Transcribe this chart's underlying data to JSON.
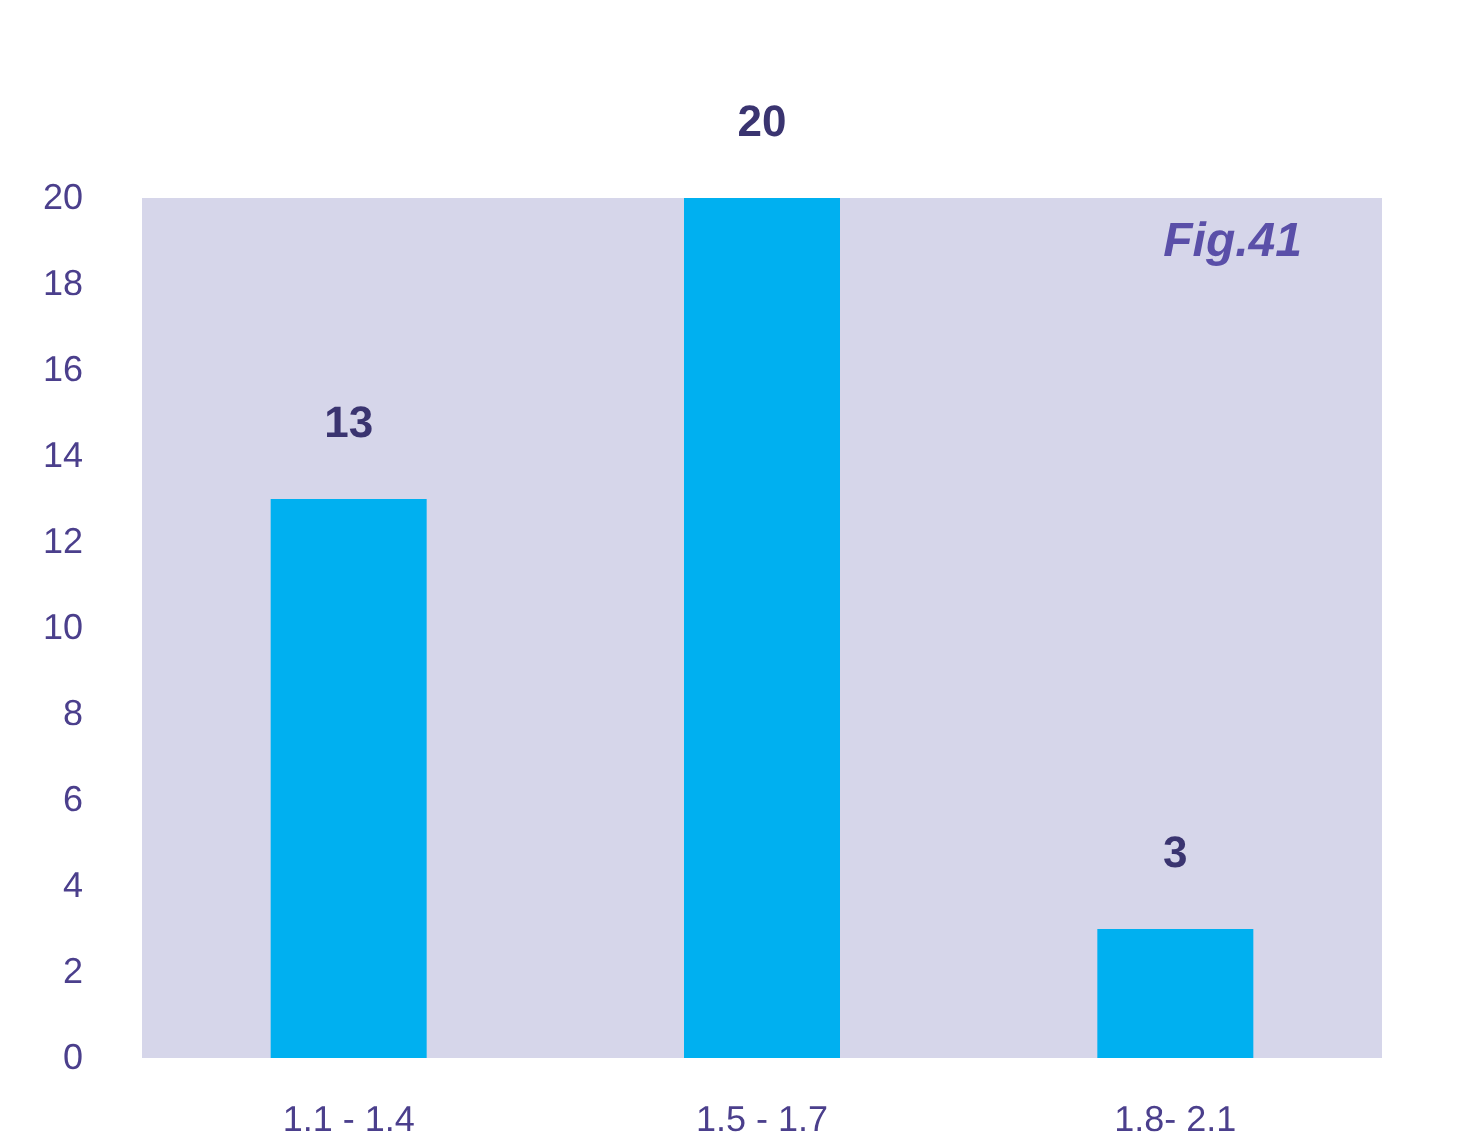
{
  "chart_data": {
    "type": "bar",
    "categories": [
      "1.1 - 1.4",
      "1.5 - 1.7",
      "1.8- 2.1"
    ],
    "values": [
      13,
      20,
      3
    ],
    "color": "#00b0f0",
    "ylim": [
      0,
      20
    ],
    "yticks": [
      0,
      2,
      4,
      6,
      8,
      10,
      12,
      14,
      16,
      18,
      20
    ],
    "grid": false,
    "data_labels": true,
    "annotations": [
      "Fig.41"
    ]
  }
}
